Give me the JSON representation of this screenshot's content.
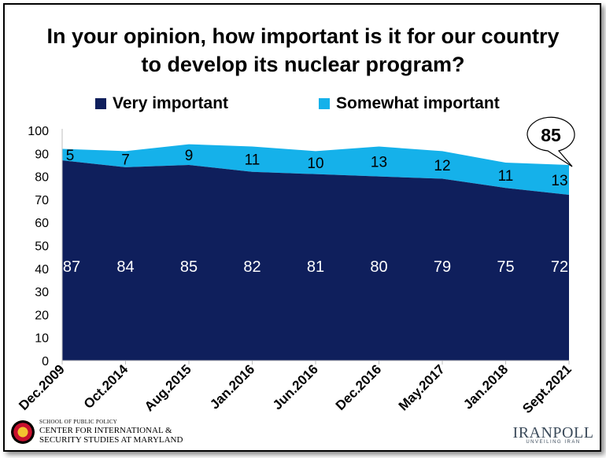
{
  "title_lines": [
    "In your opinion, how important is it for our country",
    "to develop its nuclear program?"
  ],
  "colors": {
    "very": "#0f1f5c",
    "somewhat": "#15b1ea",
    "axis_text": "#000000",
    "label_on_dark": "#ffffff"
  },
  "callout_value": "85",
  "chart_data": {
    "type": "area",
    "stacked": true,
    "title": "In your opinion, how important is it for our country to develop its nuclear program?",
    "categories": [
      "Dec.2009",
      "Oct.2014",
      "Aug.2015",
      "Jan.2016",
      "Jun.2016",
      "Dec.2016",
      "May.2017",
      "Jan.2018",
      "Sept.2021"
    ],
    "series": [
      {
        "name": "Very important",
        "values": [
          87,
          84,
          85,
          82,
          81,
          80,
          79,
          75,
          72
        ]
      },
      {
        "name": "Somewhat important",
        "values": [
          5,
          7,
          9,
          11,
          10,
          13,
          12,
          11,
          13
        ]
      }
    ],
    "ylim": [
      0,
      100
    ],
    "yticks": [
      "0",
      "10",
      "20",
      "30",
      "40",
      "50",
      "60",
      "70",
      "80",
      "90",
      "100"
    ],
    "grid": false,
    "legend": "top"
  },
  "logos": {
    "umd_small": "SCHOOL OF PUBLIC POLICY",
    "umd_line1": "CENTER FOR INTERNATIONAL &",
    "umd_line2": "SECURITY STUDIES AT MARYLAND",
    "iranpoll_name": "IRANPOLL",
    "iranpoll_tag": "UNVEILING IRAN"
  }
}
